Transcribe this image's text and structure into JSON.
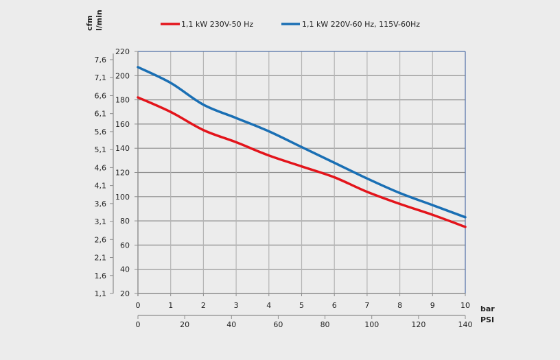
{
  "chart_data": {
    "type": "line",
    "title": "",
    "xlabel": "bar",
    "x2label": "PSI",
    "ylabel": "l/min",
    "y2label": "cfm",
    "xlim": [
      0,
      10
    ],
    "x2lim": [
      0,
      140
    ],
    "ylim": [
      20,
      220
    ],
    "y2lim": [
      1.1,
      7.6
    ],
    "grid": true,
    "legend_position": "top",
    "x_ticks": [
      "0",
      "1",
      "2",
      "3",
      "4",
      "5",
      "6",
      "7",
      "8",
      "9",
      "10"
    ],
    "x2_ticks": [
      "0",
      "20",
      "40",
      "60",
      "80",
      "100",
      "120",
      "140"
    ],
    "y_ticks": [
      "20",
      "40",
      "60",
      "80",
      "100",
      "120",
      "140",
      "160",
      "180",
      "200",
      "220"
    ],
    "y2_ticks": [
      "1,1",
      "1,6",
      "2,1",
      "2,6",
      "3,1",
      "3,6",
      "4,1",
      "4,6",
      "5,1",
      "5,6",
      "6,1",
      "6,6",
      "7,1",
      "7,6"
    ],
    "x": [
      0,
      1,
      2,
      3,
      4,
      5,
      6,
      7,
      8,
      9,
      10
    ],
    "series": [
      {
        "name": "1,1 kW 230V-50 Hz",
        "color": "#e3141b",
        "values": [
          182,
          170,
          155,
          145,
          134,
          125,
          116,
          104,
          94,
          85,
          75
        ]
      },
      {
        "name": "1,1 kW 220V-60 Hz, 115V-60Hz",
        "color": "#1a6fb4",
        "values": [
          207,
          194,
          176,
          165,
          154,
          141,
          128,
          115,
          103,
          93,
          83
        ]
      }
    ]
  }
}
